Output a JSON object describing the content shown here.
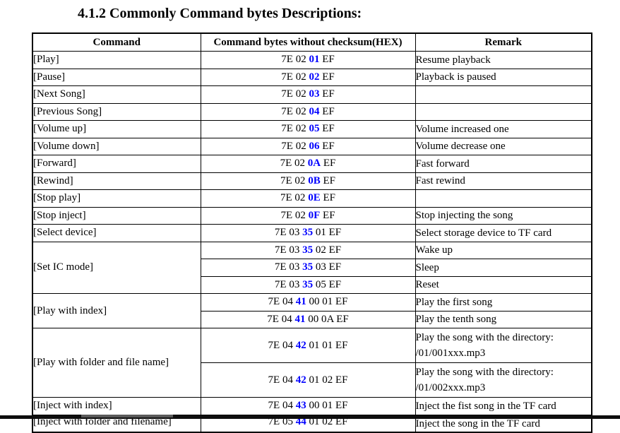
{
  "page": {
    "title": "4.1.2 Commonly Command bytes Descriptions:"
  },
  "colors": {
    "text": "#000000",
    "border": "#000000",
    "byte_highlight": "#0000ff",
    "bottom_bar": "#0d0d0d",
    "bottom_bar_accent": "#5a5a5a"
  },
  "table": {
    "headers": [
      "Command",
      "Command bytes without checksum(HEX)",
      "Remark"
    ],
    "rows": [
      {
        "command": "[Play]",
        "rowspan": 1,
        "hex_pre": "7E 02",
        "hex_blue": "01",
        "hex_post": "EF",
        "remark_lines": [
          "Resume playback"
        ]
      },
      {
        "command": "[Pause]",
        "rowspan": 1,
        "hex_pre": "7E 02",
        "hex_blue": "02",
        "hex_post": "EF",
        "remark_lines": [
          "Playback is paused"
        ]
      },
      {
        "command": "[Next Song]",
        "rowspan": 1,
        "hex_pre": "7E 02",
        "hex_blue": "03",
        "hex_post": "EF",
        "remark_lines": []
      },
      {
        "command": "[Previous Song]",
        "rowspan": 1,
        "hex_pre": "7E 02",
        "hex_blue": "04",
        "hex_post": "EF",
        "remark_lines": []
      },
      {
        "command": "[Volume up]",
        "rowspan": 1,
        "hex_pre": "7E 02",
        "hex_blue": "05",
        "hex_post": "EF",
        "remark_lines": [
          "Volume increased one"
        ]
      },
      {
        "command": "[Volume down]",
        "rowspan": 1,
        "hex_pre": "7E 02",
        "hex_blue": "06",
        "hex_post": "EF",
        "remark_lines": [
          "Volume decrease one"
        ]
      },
      {
        "command": "[Forward]",
        "rowspan": 1,
        "hex_pre": "7E 02",
        "hex_blue": "0A",
        "hex_post": "EF",
        "remark_lines": [
          "Fast forward"
        ]
      },
      {
        "command": "[Rewind]",
        "rowspan": 1,
        "hex_pre": "7E 02",
        "hex_blue": "0B",
        "hex_post": "EF",
        "remark_lines": [
          "Fast rewind"
        ]
      },
      {
        "command": "[Stop play]",
        "rowspan": 1,
        "hex_pre": "7E 02",
        "hex_blue": "0E",
        "hex_post": "EF",
        "remark_lines": []
      },
      {
        "command": "[Stop inject]",
        "rowspan": 1,
        "hex_pre": "7E 02",
        "hex_blue": "0F",
        "hex_post": "EF",
        "remark_lines": [
          "Stop injecting the song"
        ]
      },
      {
        "command": "[Select device]",
        "rowspan": 1,
        "hex_pre": "7E 03",
        "hex_blue": "35",
        "hex_post": "01 EF",
        "remark_lines": [
          "Select storage device to TF card"
        ]
      },
      {
        "command": "[Set IC mode]",
        "rowspan": 3,
        "hex_pre": "7E 03",
        "hex_blue": "35",
        "hex_post": "02 EF",
        "remark_lines": [
          "Wake up"
        ]
      },
      {
        "command": null,
        "hex_pre": "7E 03",
        "hex_blue": "35",
        "hex_post": "03 EF",
        "remark_lines": [
          "Sleep"
        ]
      },
      {
        "command": null,
        "hex_pre": "7E 03",
        "hex_blue": "35",
        "hex_post": "05 EF",
        "remark_lines": [
          "Reset"
        ]
      },
      {
        "command": "[Play with index]",
        "rowspan": 2,
        "hex_pre": "7E 04",
        "hex_blue": "41",
        "hex_post": "00 01 EF",
        "remark_lines": [
          "Play the first song"
        ]
      },
      {
        "command": null,
        "hex_pre": "7E 04",
        "hex_blue": "41",
        "hex_post": "00 0A EF",
        "remark_lines": [
          "Play the tenth song"
        ]
      },
      {
        "command": "[Play with folder and file name]",
        "rowspan": 2,
        "tall": true,
        "hex_pre": "7E 04",
        "hex_blue": "42",
        "hex_post": "01 01 EF",
        "remark_lines": [
          "Play the song with the directory:",
          "/01/001xxx.mp3"
        ]
      },
      {
        "command": null,
        "tall": true,
        "hex_pre": "7E 04",
        "hex_blue": "42",
        "hex_post": "01 02 EF",
        "remark_lines": [
          "Play the song with the directory:",
          "/01/002xxx.mp3"
        ]
      },
      {
        "command": "[Inject with index]",
        "rowspan": 1,
        "hex_pre": "7E 04",
        "hex_blue": "43",
        "hex_post": "00 01 EF",
        "remark_lines": [
          "Inject the fist song in the TF card"
        ]
      }
    ],
    "clipped_row": {
      "command": "[Inject with folder and filename]",
      "hex_pre": "7E 05",
      "hex_blue": "44",
      "hex_post": "01 02 EF",
      "remark_lines": [
        "Inject the song in the TF card"
      ]
    }
  }
}
